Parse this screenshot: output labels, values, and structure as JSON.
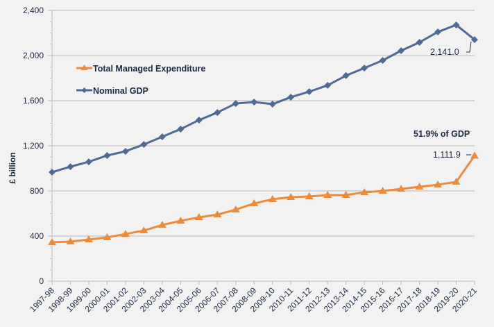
{
  "chart_data": {
    "type": "line",
    "title": "",
    "xlabel": "",
    "ylabel": "£ billion",
    "ylim": [
      0,
      2400
    ],
    "yticks": [
      0,
      400,
      800,
      1200,
      1600,
      2000,
      2400
    ],
    "ytick_labels": [
      "0",
      "400",
      "800",
      "1,200",
      "1,600",
      "2,000",
      "2,400"
    ],
    "grid": true,
    "legend_position": "upper-left",
    "categories": [
      "1997-98",
      "1998-99",
      "1999-00",
      "2000-01",
      "2001-02",
      "2002-03",
      "2003-04",
      "2004-05",
      "2005-06",
      "2006-07",
      "2007-08",
      "2008-09",
      "2009-10",
      "2010-11",
      "2011-12",
      "2012-13",
      "2013-14",
      "2014-15",
      "2015-16",
      "2016-17",
      "2017-18",
      "2018-19",
      "2019-20",
      "2020-21"
    ],
    "series": [
      {
        "name": "Total Managed Expenditure",
        "color": "#ed8b3c",
        "marker": "triangle",
        "values": [
          345,
          351,
          369,
          388,
          418,
          449,
          498,
          535,
          566,
          590,
          634,
          689,
          726,
          745,
          751,
          763,
          763,
          788,
          800,
          818,
          837,
          855,
          880,
          1111.9
        ]
      },
      {
        "name": "Nominal GDP",
        "color": "#4f6a94",
        "marker": "diamond",
        "values": [
          966,
          1015,
          1058,
          1114,
          1151,
          1212,
          1280,
          1348,
          1428,
          1495,
          1575,
          1588,
          1569,
          1631,
          1680,
          1736,
          1822,
          1889,
          1957,
          2043,
          2117,
          2209,
          2271,
          2141.0
        ]
      }
    ],
    "annotations": [
      {
        "text": "2,141.0",
        "series": "Nominal GDP",
        "category": "2020-21"
      },
      {
        "text": "1,111.9",
        "series": "Total Managed Expenditure",
        "category": "2020-21"
      },
      {
        "text": "51.9% of GDP",
        "bold": true
      }
    ]
  }
}
